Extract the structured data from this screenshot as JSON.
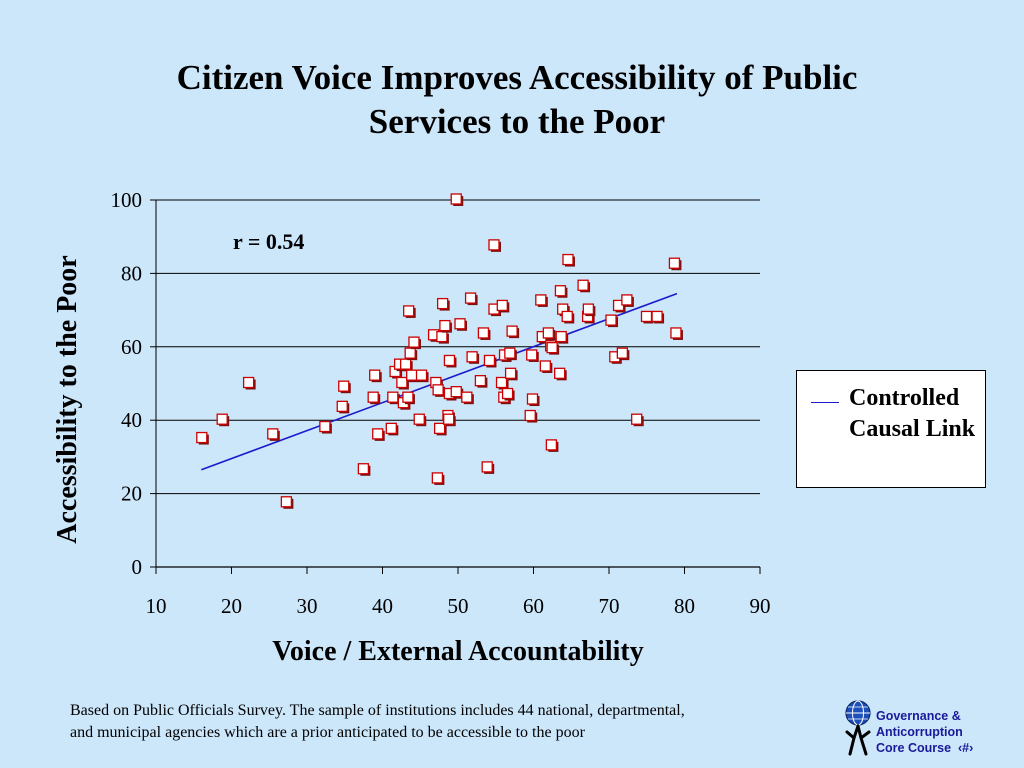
{
  "chart_data": {
    "type": "scatter",
    "title": "Citizen Voice Improves Accessibility of Public Services to the Poor",
    "xlabel": "Voice / External Accountability",
    "ylabel": "Accessibility to the Poor",
    "xlim": [
      10,
      90
    ],
    "ylim": [
      0,
      100
    ],
    "xticks": [
      10,
      20,
      30,
      40,
      50,
      60,
      70,
      80,
      90
    ],
    "yticks": [
      0,
      20,
      40,
      60,
      80,
      100
    ],
    "grid": "horizontal",
    "annotation": "r = 0.54",
    "legend": {
      "label": "Controlled Causal Link",
      "placement": "right"
    },
    "trend_line": {
      "name": "Controlled Causal Link",
      "x": [
        16,
        79
      ],
      "y": [
        26.5,
        74.5
      ],
      "color": "#1a1acc"
    },
    "points": [
      [
        16.2,
        35
      ],
      [
        18.9,
        40
      ],
      [
        22.4,
        50
      ],
      [
        25.6,
        36
      ],
      [
        27.4,
        17.5
      ],
      [
        32.5,
        38
      ],
      [
        34.8,
        43.5
      ],
      [
        35,
        49
      ],
      [
        37.6,
        26.5
      ],
      [
        38.9,
        46
      ],
      [
        39.1,
        52
      ],
      [
        39.5,
        36
      ],
      [
        41.3,
        37.5
      ],
      [
        41.5,
        46
      ],
      [
        41.8,
        53
      ],
      [
        42.4,
        55
      ],
      [
        42.7,
        50
      ],
      [
        42.9,
        44.5
      ],
      [
        43.2,
        55
      ],
      [
        43.5,
        46
      ],
      [
        43.6,
        69.5
      ],
      [
        43.8,
        58
      ],
      [
        44,
        52
      ],
      [
        44.3,
        61
      ],
      [
        45,
        40
      ],
      [
        45.3,
        52
      ],
      [
        46.9,
        63
      ],
      [
        47.2,
        50
      ],
      [
        47.4,
        24
      ],
      [
        47.5,
        48
      ],
      [
        47.7,
        37.5
      ],
      [
        48,
        62.5
      ],
      [
        48.1,
        71.5
      ],
      [
        48.4,
        65.5
      ],
      [
        48.8,
        41
      ],
      [
        48.9,
        40
      ],
      [
        49,
        47
      ],
      [
        49,
        56
      ],
      [
        49.9,
        47.5
      ],
      [
        49.9,
        100
      ],
      [
        50.4,
        66
      ],
      [
        51.3,
        46
      ],
      [
        51.8,
        73
      ],
      [
        52,
        57
      ],
      [
        53.1,
        50.5
      ],
      [
        53.5,
        63.5
      ],
      [
        54,
        27
      ],
      [
        54.3,
        56
      ],
      [
        54.9,
        87.5
      ],
      [
        54.9,
        70
      ],
      [
        55.9,
        50
      ],
      [
        56,
        71
      ],
      [
        56.2,
        46
      ],
      [
        56.3,
        57.5
      ],
      [
        56.7,
        47
      ],
      [
        57,
        58
      ],
      [
        57.1,
        52.5
      ],
      [
        57.3,
        64
      ],
      [
        59.7,
        41
      ],
      [
        59.9,
        57.5
      ],
      [
        60,
        45.5
      ],
      [
        61.1,
        72.5
      ],
      [
        61.3,
        62.5
      ],
      [
        61.7,
        54.5
      ],
      [
        62.1,
        63.5
      ],
      [
        62.4,
        60
      ],
      [
        62.5,
        33
      ],
      [
        62.6,
        59.5
      ],
      [
        63.6,
        52.5
      ],
      [
        63.7,
        75
      ],
      [
        63.8,
        62.5
      ],
      [
        64,
        70
      ],
      [
        64.6,
        68
      ],
      [
        64.7,
        83.5
      ],
      [
        66.7,
        76.5
      ],
      [
        67.3,
        68
      ],
      [
        67.4,
        70
      ],
      [
        70.4,
        67
      ],
      [
        70.9,
        57
      ],
      [
        71.4,
        71
      ],
      [
        71.9,
        58
      ],
      [
        72.5,
        72.5
      ],
      [
        73.8,
        40
      ],
      [
        75.1,
        68
      ],
      [
        76.5,
        68
      ],
      [
        78.8,
        82.5
      ],
      [
        79,
        63.5
      ]
    ]
  },
  "footnote": {
    "line1": "Based on Public Officials Survey. The sample of institutions includes 44 national, departmental,",
    "line2": "and municipal agencies which  are a prior anticipated to be accessible to the poor"
  },
  "logo": {
    "line1": "Governance &",
    "line2": "Anticorruption",
    "line3": "Core Course",
    "page_marker": "‹#›"
  },
  "colors": {
    "background": "#cce6fa",
    "marker_fill": "#ffffff",
    "marker_edge": "#cc0000",
    "trend_line": "#1a1acc"
  }
}
